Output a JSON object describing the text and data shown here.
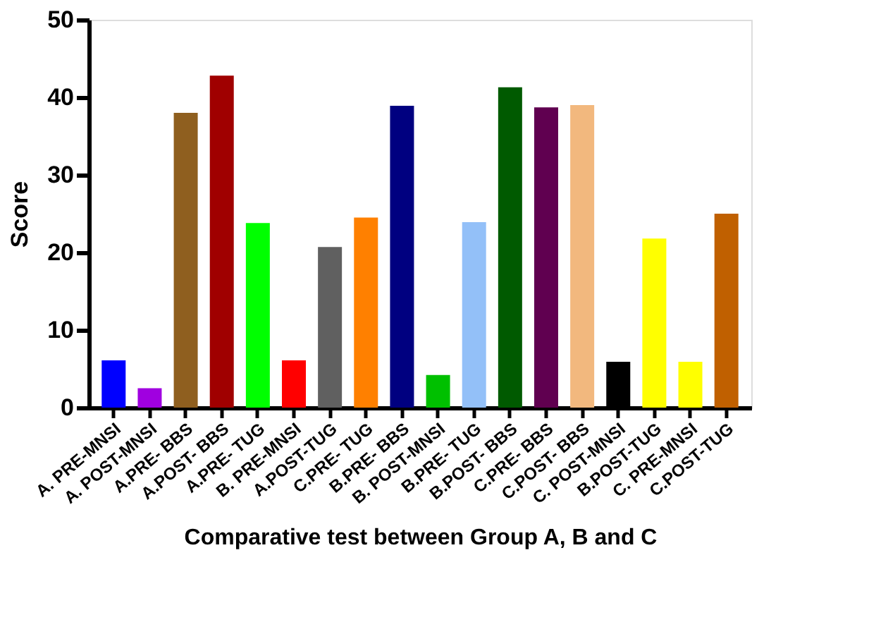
{
  "chart_data": {
    "type": "bar",
    "xlabel": "Comparative test between Group A, B and C",
    "ylabel": "Score",
    "categories": [
      "A. PRE-MNSI",
      "A. POST-MNSI",
      "A.PRE- BBS",
      "A.POST- BBS",
      "A.PRE- TUG",
      "B. PRE-MNSI",
      "A.POST-TUG",
      "C.PRE- TUG",
      "B.PRE- BBS",
      "B. POST-MNSI",
      "B.PRE- TUG",
      "B.POST- BBS",
      "C.PRE- BBS",
      "C.POST- BBS",
      "C. POST-MNSI",
      "B.POST-TUG",
      "C. PRE-MNSI",
      "C.POST-TUG"
    ],
    "values": [
      6.1,
      2.5,
      38.0,
      42.8,
      23.8,
      6.1,
      20.7,
      24.5,
      38.9,
      4.2,
      23.9,
      41.3,
      38.7,
      39.0,
      5.9,
      21.8,
      5.9,
      25.0
    ],
    "colors": [
      "#0000ff",
      "#a000e0",
      "#8f5f1f",
      "#a00000",
      "#00ff00",
      "#ff0000",
      "#606060",
      "#ff8000",
      "#000080",
      "#00c000",
      "#93c0f8",
      "#005a00",
      "#600050",
      "#f2b87e",
      "#000000",
      "#ffff00",
      "#ffff00",
      "#c06000"
    ],
    "ylim": [
      0,
      50
    ],
    "yticks": [
      0,
      10,
      20,
      30,
      40,
      50
    ],
    "grid": false,
    "legend": false
  }
}
